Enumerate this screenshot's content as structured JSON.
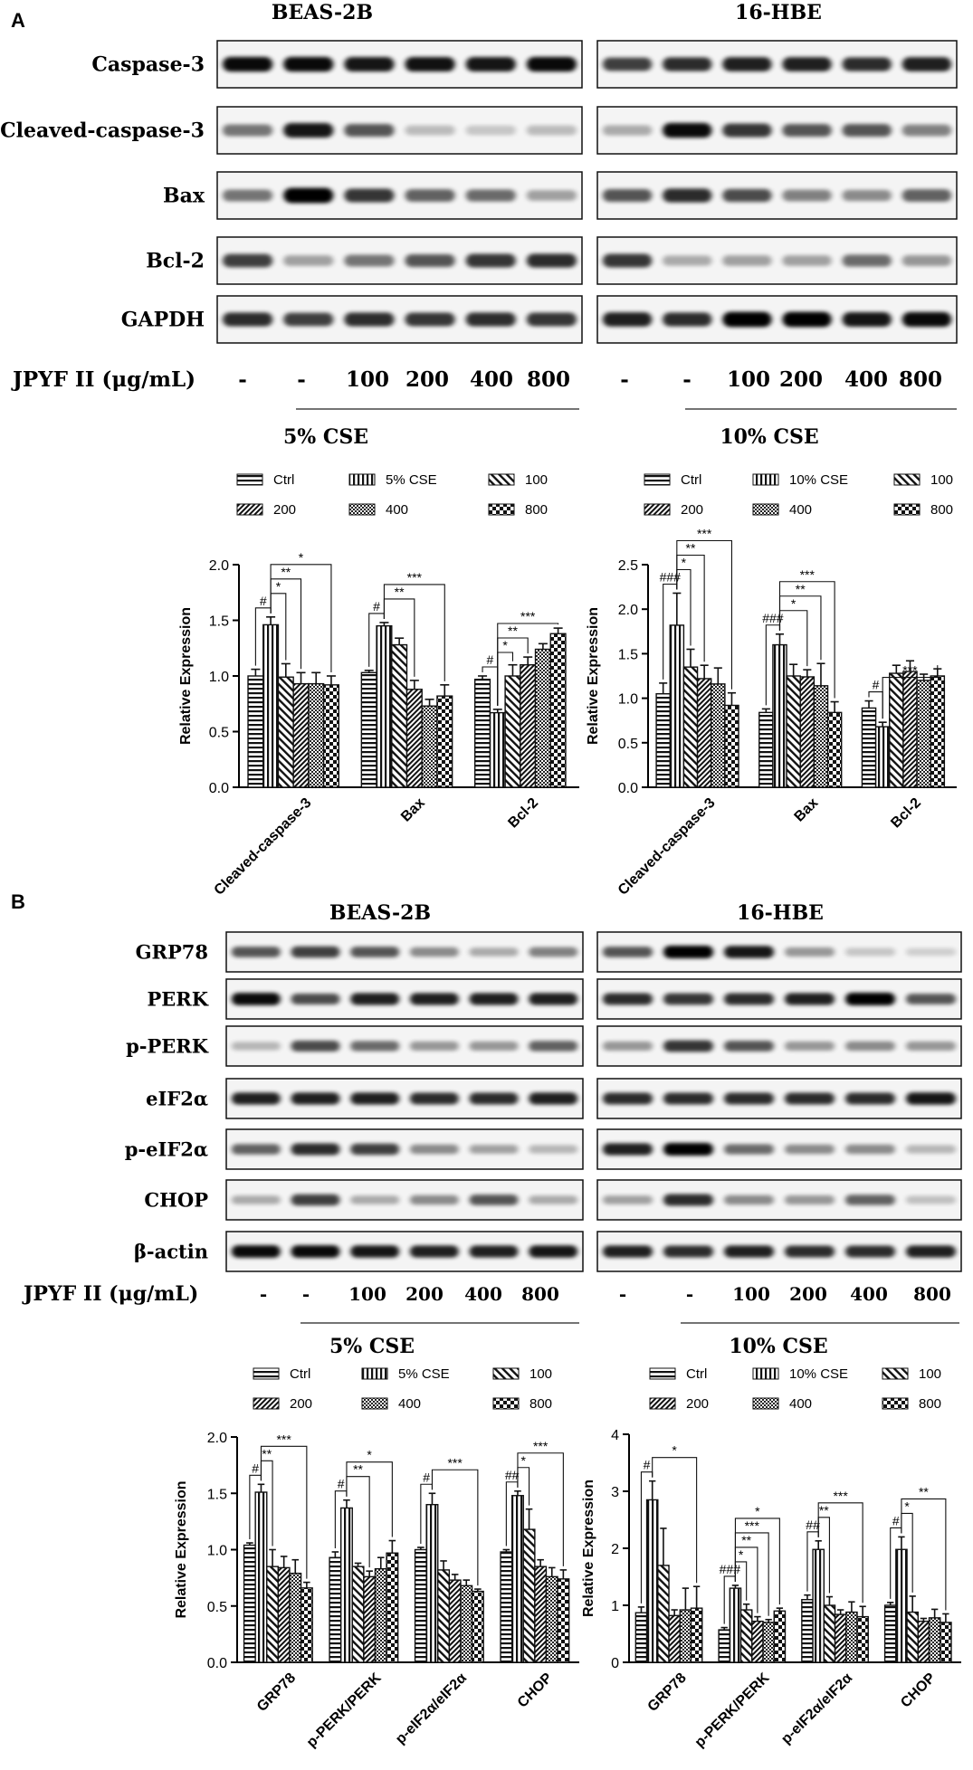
{
  "panel_labels": [
    "A",
    "B"
  ],
  "patterns": {
    "Ctrl": "dots",
    "CSE": "checker",
    "100": "hlines",
    "200": "vlines",
    "400": "diag",
    "800": "diag-dense"
  },
  "panelA": {
    "blots": {
      "left_title": "BEAS-2B",
      "right_title": "16-HBE",
      "proteins": [
        "Caspase-3",
        "Cleaved-caspase-3",
        "Bax",
        "Bcl-2",
        "GAPDH"
      ],
      "treatment_label": "JPYF II (μg/mL)",
      "lanes": [
        "-",
        "-",
        "100",
        "200",
        "400",
        "800"
      ],
      "left_condition": "5% CSE",
      "right_condition": "10% CSE"
    }
  },
  "panelB": {
    "blots": {
      "left_title": "BEAS-2B",
      "right_title": "16-HBE",
      "proteins": [
        "GRP78",
        "PERK",
        "p-PERK",
        "eIF2α",
        "p-eIF2α",
        "CHOP",
        "β-actin"
      ],
      "treatment_label": "JPYF II (μg/mL)",
      "lanes": [
        "-",
        "-",
        "100",
        "200",
        "400",
        "800"
      ],
      "left_condition": "5% CSE",
      "right_condition": "10% CSE"
    }
  },
  "chart_data": [
    {
      "type": "bar",
      "title": "5% CSE",
      "ylabel": "Relative Expression",
      "ylim": [
        0,
        2.0
      ],
      "yticks": [
        "0.0",
        "0.5",
        "1.0",
        "1.5",
        "2.0"
      ],
      "legend": [
        "Ctrl",
        "5% CSE",
        "100",
        "200",
        "400",
        "800"
      ],
      "categories": [
        "Cleaved-caspase-3",
        "Bax",
        "Bcl-2"
      ],
      "series": [
        {
          "name": "Ctrl",
          "values": [
            1.0,
            1.03,
            0.97
          ],
          "err": [
            0.06,
            0.02,
            0.03
          ]
        },
        {
          "name": "5% CSE",
          "values": [
            1.46,
            1.45,
            0.67
          ],
          "err": [
            0.07,
            0.03,
            0.03
          ]
        },
        {
          "name": "100",
          "values": [
            0.99,
            1.28,
            1.0
          ],
          "err": [
            0.12,
            0.06,
            0.1
          ]
        },
        {
          "name": "200",
          "values": [
            0.93,
            0.88,
            1.1
          ],
          "err": [
            0.1,
            0.08,
            0.07
          ]
        },
        {
          "name": "400",
          "values": [
            0.93,
            0.73,
            1.24
          ],
          "err": [
            0.1,
            0.06,
            0.05
          ]
        },
        {
          "name": "800",
          "values": [
            0.92,
            0.82,
            1.38
          ],
          "err": [
            0.08,
            0.1,
            0.05
          ]
        }
      ],
      "significance": [
        {
          "cat": 0,
          "pairs": [
            [
              0,
              1,
              "#"
            ],
            [
              1,
              2,
              "*"
            ],
            [
              1,
              3,
              "**"
            ],
            [
              1,
              5,
              "*"
            ]
          ]
        },
        {
          "cat": 1,
          "pairs": [
            [
              0,
              1,
              "#"
            ],
            [
              1,
              3,
              "**"
            ],
            [
              1,
              5,
              "***"
            ]
          ]
        },
        {
          "cat": 2,
          "pairs": [
            [
              0,
              1,
              "#"
            ],
            [
              1,
              2,
              "*"
            ],
            [
              1,
              3,
              "**"
            ],
            [
              1,
              5,
              "***"
            ]
          ]
        }
      ]
    },
    {
      "type": "bar",
      "title": "10% CSE",
      "ylabel": "Relative Expression",
      "ylim": [
        0,
        2.5
      ],
      "yticks": [
        "0.0",
        "0.5",
        "1.0",
        "1.5",
        "2.0",
        "2.5"
      ],
      "legend": [
        "Ctrl",
        "10% CSE",
        "100",
        "200",
        "400",
        "800"
      ],
      "categories": [
        "Cleaved-caspase-3",
        "Bax",
        "Bcl-2"
      ],
      "series": [
        {
          "name": "Ctrl",
          "values": [
            1.05,
            0.84,
            0.89
          ],
          "err": [
            0.12,
            0.04,
            0.08
          ]
        },
        {
          "name": "10% CSE",
          "values": [
            1.82,
            1.6,
            0.68
          ],
          "err": [
            0.36,
            0.12,
            0.05
          ]
        },
        {
          "name": "100",
          "values": [
            1.35,
            1.25,
            1.28
          ],
          "err": [
            0.2,
            0.13,
            0.09
          ]
        },
        {
          "name": "200",
          "values": [
            1.22,
            1.24,
            1.3
          ],
          "err": [
            0.15,
            0.08,
            0.12
          ]
        },
        {
          "name": "400",
          "values": [
            1.16,
            1.14,
            1.2
          ],
          "err": [
            0.18,
            0.25,
            0.07
          ]
        },
        {
          "name": "800",
          "values": [
            0.92,
            0.84,
            1.25
          ],
          "err": [
            0.14,
            0.12,
            0.08
          ]
        }
      ],
      "significance": [
        {
          "cat": 0,
          "pairs": [
            [
              0,
              1,
              "###"
            ],
            [
              1,
              2,
              "*"
            ],
            [
              1,
              3,
              "**"
            ],
            [
              1,
              5,
              "***"
            ]
          ]
        },
        {
          "cat": 1,
          "pairs": [
            [
              0,
              1,
              "###"
            ],
            [
              1,
              3,
              "*"
            ],
            [
              1,
              4,
              "**"
            ],
            [
              1,
              5,
              "***"
            ]
          ]
        },
        {
          "cat": 2,
          "pairs": [
            [
              0,
              1,
              "#"
            ],
            [
              1,
              5,
              "***"
            ]
          ]
        }
      ]
    },
    {
      "type": "bar",
      "title": "5% CSE",
      "ylabel": "Relative Expression",
      "ylim": [
        0,
        2.0
      ],
      "yticks": [
        "0.0",
        "0.5",
        "1.0",
        "1.5",
        "2.0"
      ],
      "legend": [
        "Ctrl",
        "5% CSE",
        "100",
        "200",
        "400",
        "800"
      ],
      "categories": [
        "GRP78",
        "p-PERK/PERK",
        "p-eIF2α/eIF2α",
        "CHOP"
      ],
      "series": [
        {
          "name": "Ctrl",
          "values": [
            1.04,
            0.93,
            1.0,
            0.98
          ],
          "err": [
            0.02,
            0.05,
            0.02,
            0.02
          ]
        },
        {
          "name": "5% CSE",
          "values": [
            1.51,
            1.37,
            1.4,
            1.48
          ],
          "err": [
            0.07,
            0.07,
            0.1,
            0.04
          ]
        },
        {
          "name": "100",
          "values": [
            0.85,
            0.85,
            0.82,
            1.18
          ],
          "err": [
            0.15,
            0.03,
            0.08,
            0.18
          ]
        },
        {
          "name": "200",
          "values": [
            0.84,
            0.76,
            0.73,
            0.85
          ],
          "err": [
            0.1,
            0.05,
            0.05,
            0.06
          ]
        },
        {
          "name": "400",
          "values": [
            0.79,
            0.83,
            0.68,
            0.76
          ],
          "err": [
            0.12,
            0.1,
            0.05,
            0.08
          ]
        },
        {
          "name": "800",
          "values": [
            0.66,
            0.97,
            0.63,
            0.74
          ],
          "err": [
            0.05,
            0.11,
            0.02,
            0.08
          ]
        }
      ],
      "significance": [
        {
          "cat": 0,
          "pairs": [
            [
              0,
              1,
              "#"
            ],
            [
              1,
              2,
              "**"
            ],
            [
              1,
              5,
              "***"
            ]
          ]
        },
        {
          "cat": 1,
          "pairs": [
            [
              0,
              1,
              "#"
            ],
            [
              1,
              3,
              "**"
            ],
            [
              1,
              5,
              "*"
            ]
          ]
        },
        {
          "cat": 2,
          "pairs": [
            [
              0,
              1,
              "#"
            ],
            [
              1,
              5,
              "***"
            ]
          ]
        },
        {
          "cat": 3,
          "pairs": [
            [
              0,
              1,
              "##"
            ],
            [
              1,
              2,
              "*"
            ],
            [
              1,
              5,
              "***"
            ]
          ]
        }
      ]
    },
    {
      "type": "bar",
      "title": "10% CSE",
      "ylabel": "Relative Expression",
      "ylim": [
        0,
        4
      ],
      "yticks": [
        "0",
        "1",
        "2",
        "3",
        "4"
      ],
      "legend": [
        "Ctrl",
        "10% CSE",
        "100",
        "200",
        "400",
        "800"
      ],
      "categories": [
        "GRP78",
        "p-PERK/PERK",
        "p-eIF2α/eIF2α",
        "CHOP"
      ],
      "series": [
        {
          "name": "Ctrl",
          "values": [
            0.87,
            0.57,
            1.1,
            1.0
          ],
          "err": [
            0.1,
            0.04,
            0.08,
            0.05
          ]
        },
        {
          "name": "10% CSE",
          "values": [
            2.85,
            1.3,
            1.98,
            1.98
          ],
          "err": [
            0.33,
            0.05,
            0.15,
            0.22
          ]
        },
        {
          "name": "100",
          "values": [
            1.7,
            0.92,
            1.0,
            0.88
          ],
          "err": [
            0.65,
            0.1,
            0.15,
            0.28
          ]
        },
        {
          "name": "200",
          "values": [
            0.82,
            0.72,
            0.84,
            0.72
          ],
          "err": [
            0.1,
            0.08,
            0.08,
            0.05
          ]
        },
        {
          "name": "400",
          "values": [
            0.92,
            0.7,
            0.88,
            0.78
          ],
          "err": [
            0.38,
            0.05,
            0.18,
            0.15
          ]
        },
        {
          "name": "800",
          "values": [
            0.95,
            0.9,
            0.8,
            0.7
          ],
          "err": [
            0.38,
            0.05,
            0.18,
            0.15
          ]
        }
      ],
      "significance": [
        {
          "cat": 0,
          "pairs": [
            [
              0,
              1,
              "#"
            ],
            [
              1,
              5,
              "*"
            ]
          ]
        },
        {
          "cat": 1,
          "pairs": [
            [
              0,
              1,
              "###"
            ],
            [
              1,
              2,
              "*"
            ],
            [
              1,
              3,
              "**"
            ],
            [
              1,
              4,
              "***"
            ],
            [
              1,
              5,
              "*"
            ]
          ]
        },
        {
          "cat": 2,
          "pairs": [
            [
              0,
              1,
              "##"
            ],
            [
              1,
              2,
              "**"
            ],
            [
              1,
              5,
              "***"
            ]
          ]
        },
        {
          "cat": 3,
          "pairs": [
            [
              0,
              1,
              "#"
            ],
            [
              1,
              2,
              "*"
            ],
            [
              1,
              5,
              "**"
            ]
          ]
        }
      ]
    }
  ],
  "blot_intensities": {
    "A_left": [
      [
        0.95,
        0.95,
        0.9,
        0.92,
        0.9,
        0.95
      ],
      [
        0.45,
        0.9,
        0.6,
        0.12,
        0.08,
        0.12
      ],
      [
        0.45,
        1.0,
        0.75,
        0.55,
        0.5,
        0.25
      ],
      [
        0.7,
        0.25,
        0.45,
        0.6,
        0.75,
        0.8
      ],
      [
        0.8,
        0.7,
        0.78,
        0.75,
        0.78,
        0.75
      ]
    ],
    "A_right": [
      [
        0.7,
        0.8,
        0.85,
        0.85,
        0.8,
        0.85
      ],
      [
        0.2,
        0.95,
        0.75,
        0.6,
        0.6,
        0.4
      ],
      [
        0.6,
        0.8,
        0.65,
        0.4,
        0.35,
        0.55
      ],
      [
        0.75,
        0.2,
        0.25,
        0.25,
        0.5,
        0.3
      ],
      [
        0.85,
        0.8,
        1.0,
        1.0,
        0.9,
        0.95
      ]
    ],
    "B_left": [
      [
        0.6,
        0.7,
        0.6,
        0.35,
        0.2,
        0.4
      ],
      [
        0.95,
        0.65,
        0.85,
        0.85,
        0.85,
        0.85
      ],
      [
        0.15,
        0.65,
        0.5,
        0.3,
        0.3,
        0.55
      ],
      [
        0.85,
        0.85,
        0.85,
        0.8,
        0.8,
        0.85
      ],
      [
        0.55,
        0.8,
        0.7,
        0.35,
        0.25,
        0.15
      ],
      [
        0.2,
        0.7,
        0.2,
        0.35,
        0.6,
        0.2
      ],
      [
        0.95,
        0.95,
        0.9,
        0.85,
        0.85,
        0.9
      ]
    ],
    "B_right": [
      [
        0.6,
        1.0,
        0.9,
        0.3,
        0.08,
        0.03
      ],
      [
        0.8,
        0.75,
        0.8,
        0.85,
        1.0,
        0.6
      ],
      [
        0.3,
        0.75,
        0.6,
        0.3,
        0.35,
        0.3
      ],
      [
        0.8,
        0.8,
        0.8,
        0.8,
        0.8,
        0.9
      ],
      [
        0.85,
        1.0,
        0.5,
        0.35,
        0.35,
        0.15
      ],
      [
        0.25,
        0.8,
        0.35,
        0.3,
        0.55,
        0.1
      ],
      [
        0.85,
        0.8,
        0.85,
        0.8,
        0.8,
        0.85
      ]
    ]
  }
}
